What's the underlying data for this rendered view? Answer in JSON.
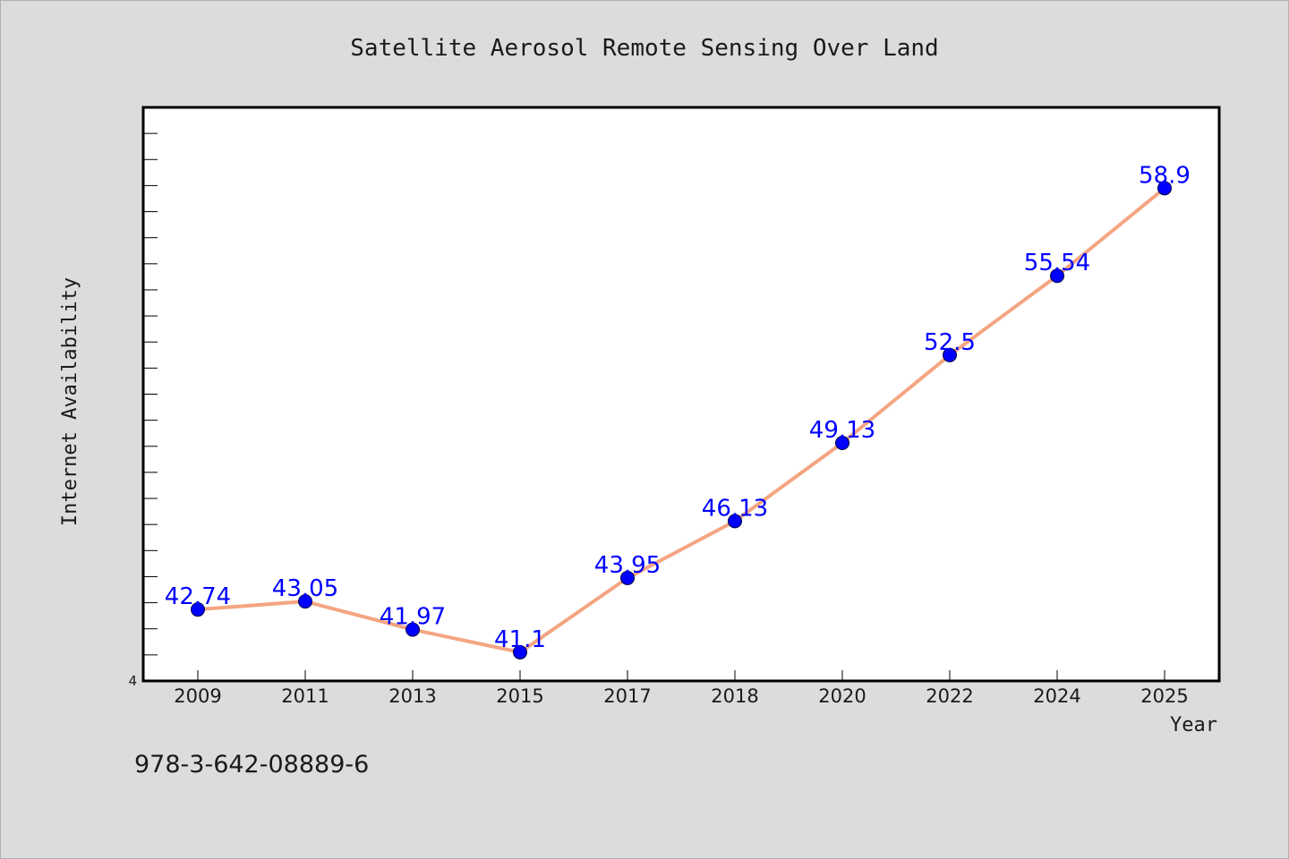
{
  "footnote": "978-3-642-08889-6",
  "colors": {
    "background": "#dcdcdc",
    "plot_background": "#ffffff",
    "line": "#f4a582",
    "marker": "#0000ff",
    "data_label": "#0000ff",
    "axis": "#000000"
  },
  "chart_data": {
    "type": "line",
    "title": "Satellite Aerosol Remote Sensing Over Land",
    "xlabel": "Year",
    "ylabel": "Internet Availability",
    "categories": [
      "2009",
      "2011",
      "2013",
      "2015",
      "2017",
      "2018",
      "2020",
      "2022",
      "2024",
      "2025"
    ],
    "series": [
      {
        "values": [
          42.74,
          43.05,
          41.97,
          41.1,
          43.95,
          46.13,
          49.13,
          52.5,
          55.54,
          58.9
        ],
        "labels": [
          "42.74",
          "43.05",
          "41.97",
          "41.1",
          "43.95",
          "46.13",
          "49.13",
          "52.5",
          "55.54",
          "58.9"
        ]
      }
    ],
    "ylim": [
      40,
      62
    ],
    "y_tick_labels": [
      "4"
    ],
    "y_minor_tick_step": 1,
    "grid": false,
    "marker": "circle"
  }
}
